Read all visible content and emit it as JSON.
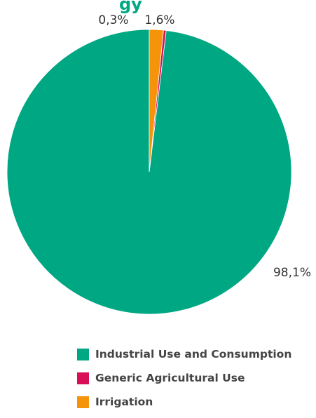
{
  "chart_data": {
    "type": "pie",
    "start": "top",
    "direction": "counterclockwise",
    "slices": [
      {
        "label": "Industrial Use and Consumption",
        "value": 98.1,
        "value_label": "98,1%",
        "color": "#00a783"
      },
      {
        "label": "Generic Agricultural Use",
        "value": 0.3,
        "value_label": "0,3%",
        "color": "#d80f58"
      },
      {
        "label": "Irrigation",
        "value": 1.6,
        "value_label": "1,6%",
        "color": "#f5930b"
      }
    ],
    "legend": {
      "placement": "bottom",
      "entries": [
        {
          "label": "Industrial Use and Consumption",
          "color": "#00a783"
        },
        {
          "label": "Generic Agricultural Use",
          "color": "#d80f58"
        },
        {
          "label": "Irrigation",
          "color": "#f5930b"
        }
      ]
    },
    "partial_title_text": "gy"
  }
}
